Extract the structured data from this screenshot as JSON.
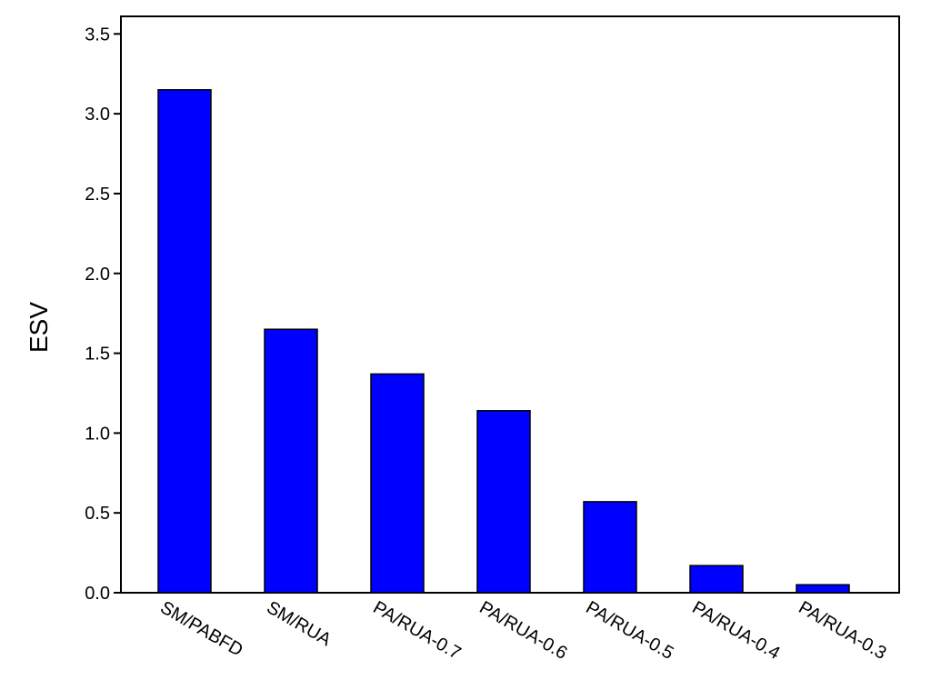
{
  "chart_data": {
    "type": "bar",
    "y_label": "ESV",
    "categories": [
      "SM/PABFD",
      "SM/RUA",
      "PA/RUA-0.7",
      "PA/RUA-0.6",
      "PA/RUA-0.5",
      "PA/RUA-0.4",
      "PA/RUA-0.3"
    ],
    "values": [
      3.15,
      1.65,
      1.37,
      1.14,
      0.57,
      0.17,
      0.05
    ],
    "color": "#0000ff",
    "ylim": [
      0,
      3.61
    ],
    "yticks": [
      {
        "value": 0,
        "label": "0.0"
      },
      0.5,
      {
        "value": 1,
        "label": "1.0"
      },
      1.5,
      {
        "value": 2,
        "label": "2.0"
      },
      2.5,
      {
        "value": 3,
        "label": "3.0"
      },
      3.5
    ]
  }
}
